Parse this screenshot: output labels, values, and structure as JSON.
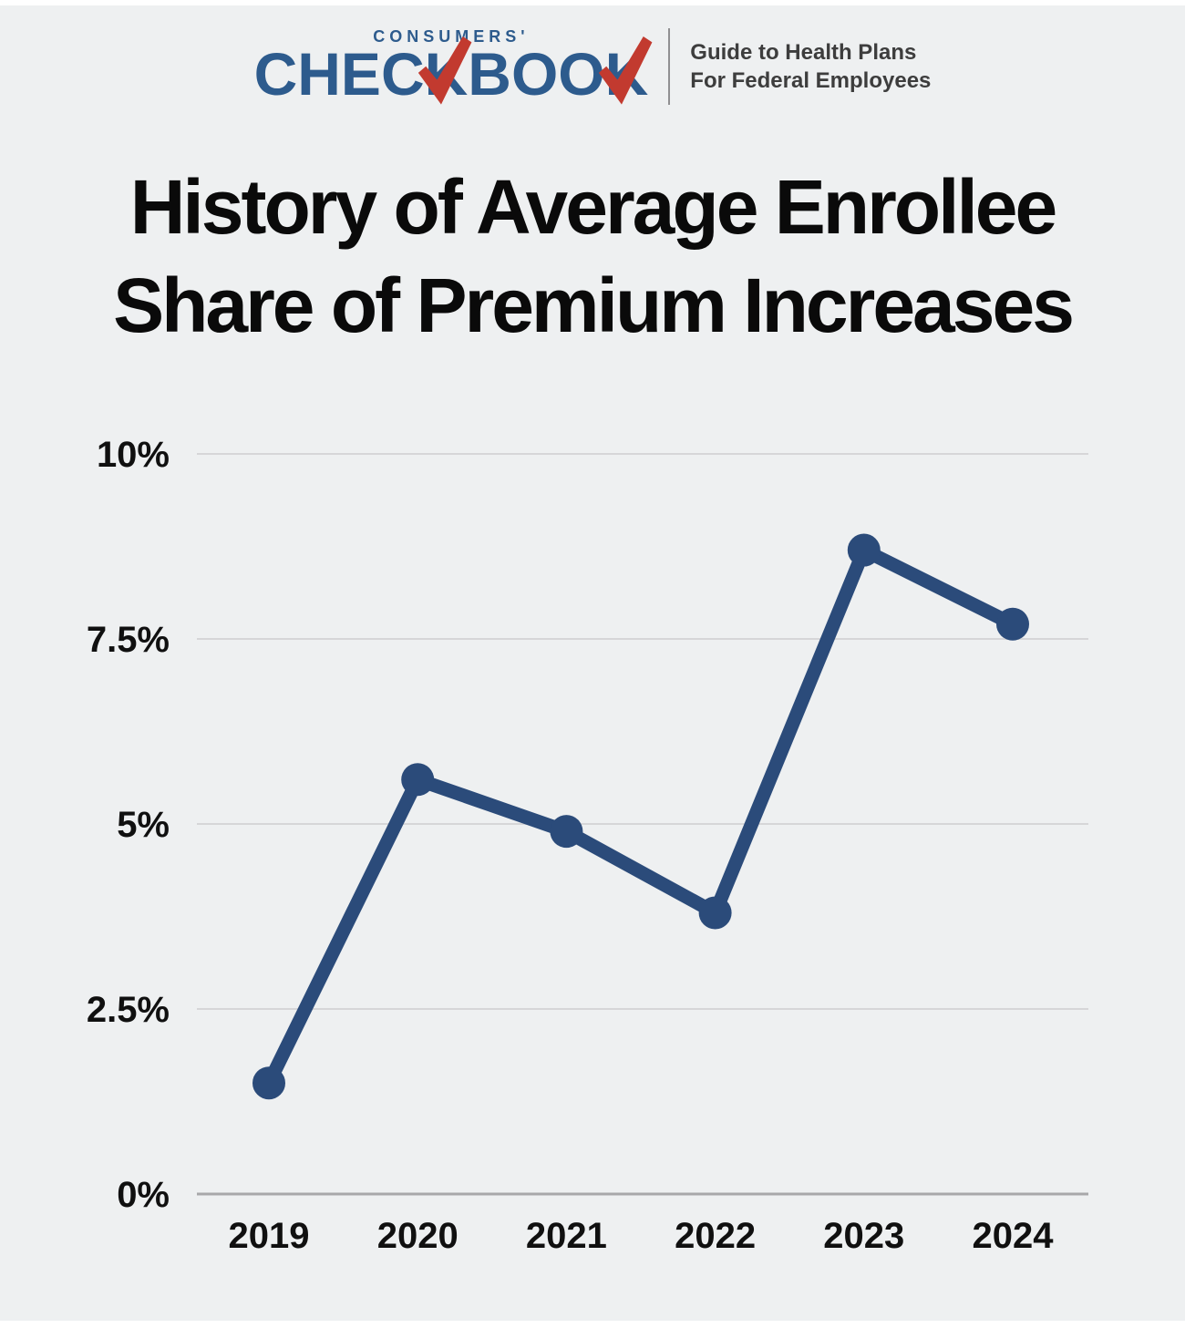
{
  "logo": {
    "consumers_text": "CONSUMERS'",
    "checkbook_seg1": "CHEC",
    "checkbook_k1": "K",
    "checkbook_seg2": "BOO",
    "checkbook_k2": "K",
    "tagline_line1": "Guide to Health Plans",
    "tagline_line2": "For Federal Employees"
  },
  "title": {
    "line1": "History of Average Enrollee",
    "line2": "Share of Premium Increases"
  },
  "chart_data": {
    "type": "line",
    "categories": [
      "2019",
      "2020",
      "2021",
      "2022",
      "2023",
      "2024"
    ],
    "values": [
      1.5,
      5.6,
      4.9,
      3.8,
      8.7,
      7.7
    ],
    "title": "History of Average Enrollee Share of Premium Increases",
    "xlabel": "",
    "ylabel": "",
    "ylim": [
      0,
      10
    ],
    "yticks": [
      0,
      2.5,
      5,
      7.5,
      10
    ],
    "ytick_labels": [
      "0%",
      "2.5%",
      "5%",
      "7.5%",
      "10%"
    ],
    "grid": true,
    "legend": false,
    "line_color": "#2b4b7a",
    "marker": "circle"
  },
  "colors": {
    "background": "#eef0f1",
    "logo_blue": "#2d5b8d",
    "logo_red": "#c23a2f",
    "tagline_gray": "#3d3d3d",
    "title_black": "#0a0a0a",
    "gridline": "#d6d6d8",
    "axis_line": "#a8a8aa",
    "line": "#2b4b7a"
  }
}
